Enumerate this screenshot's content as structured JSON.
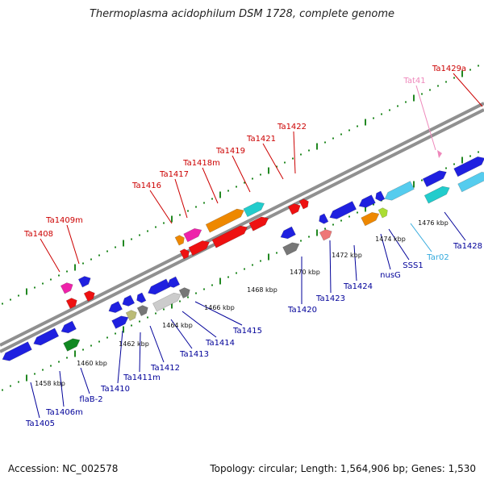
{
  "title": "Thermoplasma acidophilum DSM 1728, complete genome",
  "footer": {
    "accession": "Accession: NC_002578",
    "summary": "Topology: circular; Length: 1,564,906 bp; Genes: 1,530"
  },
  "colors": {
    "upper_label": "#cc0000",
    "lower_label": "#000099",
    "trna_label": "#33aadd",
    "tat_label": "#ee88bb",
    "backbone": "#909090",
    "tick": "#228822"
  },
  "kbp_labels": [
    "1458 kbp",
    "1460 kbp",
    "1462 kbp",
    "1464 kbp",
    "1466 kbp",
    "1468 kbp",
    "1470 kbp",
    "1472 kbp",
    "1474 kbp",
    "1476 kbp"
  ],
  "upper_genes": [
    "Ta1408",
    "Ta1409m",
    "Ta1416",
    "Ta1417",
    "Ta1418m",
    "Ta1419",
    "Ta1421",
    "Ta1422",
    "Tat41",
    "Ta1429a"
  ],
  "lower_genes": [
    "Ta1405",
    "Ta1406m",
    "flaB-2",
    "Ta1410",
    "Ta1411m",
    "Ta1412",
    "Ta1413",
    "Ta1414",
    "Ta1415",
    "Ta1420",
    "Ta1423",
    "Ta1424",
    "nusG",
    "SSS1",
    "Tar02",
    "Ta1428"
  ]
}
